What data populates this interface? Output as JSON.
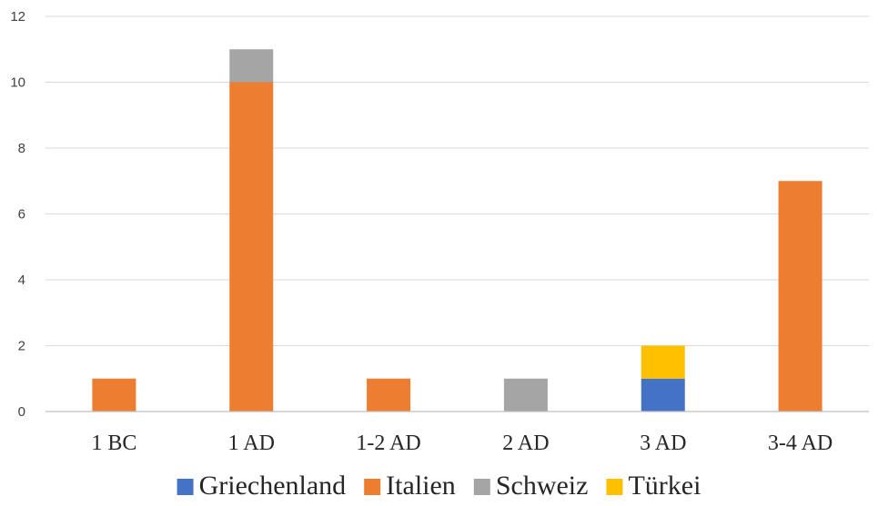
{
  "chart_data": {
    "type": "bar",
    "stacked": true,
    "title": "",
    "xlabel": "",
    "ylabel": "",
    "ylim": [
      0,
      12
    ],
    "yticks": [
      0,
      2,
      4,
      6,
      8,
      10,
      12
    ],
    "grid": true,
    "legend_position": "bottom",
    "categories": [
      "1 BC",
      "1 AD",
      "1-2 AD",
      "2 AD",
      "3 AD",
      "3-4 AD"
    ],
    "series": [
      {
        "name": "Griechenland",
        "color": "#4472C4",
        "values": [
          0,
          0,
          0,
          0,
          1,
          0
        ]
      },
      {
        "name": "Italien",
        "color": "#ED7D31",
        "values": [
          1,
          10,
          1,
          0,
          0,
          7
        ]
      },
      {
        "name": "Schweiz",
        "color": "#A5A5A5",
        "values": [
          0,
          1,
          0,
          1,
          0,
          0
        ]
      },
      {
        "name": "Türkei",
        "color": "#FFC000",
        "values": [
          0,
          0,
          0,
          0,
          1,
          0
        ]
      }
    ]
  }
}
